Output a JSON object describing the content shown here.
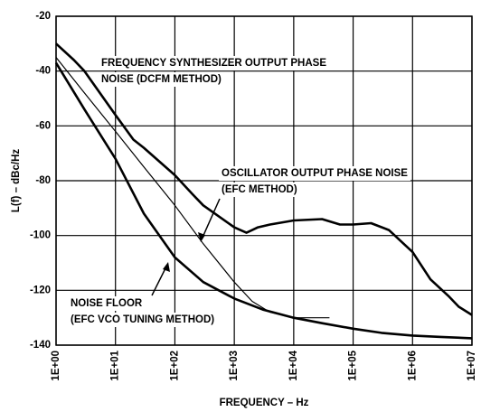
{
  "chart_data": {
    "type": "line",
    "xlabel": "FREQUENCY – Hz",
    "ylabel": "L(f) – dBc/Hz",
    "xscale": "log",
    "grid": true,
    "xlim": [
      1,
      10000000
    ],
    "ylim": [
      -140,
      -20
    ],
    "yticks": [
      -140,
      -120,
      -100,
      -80,
      -60,
      -40,
      -20
    ],
    "xticks": [
      {
        "value": 1,
        "label": "1E+00"
      },
      {
        "value": 10,
        "label": "1E+01"
      },
      {
        "value": 100,
        "label": "1E+02"
      },
      {
        "value": 1000,
        "label": "1E+03"
      },
      {
        "value": 10000,
        "label": "1E+04"
      },
      {
        "value": 100000,
        "label": "1E+05"
      },
      {
        "value": 1000000,
        "label": "1E+06"
      },
      {
        "value": 10000000,
        "label": "1E+07"
      }
    ],
    "series": [
      {
        "name": "FREQUENCY SYNTHESIZER OUTPUT PHASE NOISE (DCFM METHOD)",
        "color": "#000000",
        "width": 2.6,
        "x": [
          1,
          2,
          3,
          10,
          20,
          30,
          100,
          200,
          300,
          1000,
          1600,
          2500,
          4000,
          10000,
          30000,
          60000,
          100000,
          200000,
          400000,
          1000000,
          2000000,
          4000000,
          6000000,
          10000000
        ],
        "values": [
          -30,
          -36,
          -40,
          -56,
          -65,
          -68,
          -78,
          -85,
          -89,
          -97,
          -99,
          -97,
          -96,
          -94.5,
          -94,
          -96,
          -96,
          -95.5,
          -98,
          -106,
          -116,
          -122,
          -126,
          -129
        ]
      },
      {
        "name": "OSCILLATOR OUTPUT PHASE NOISE (EFC METHOD)",
        "color": "#000000",
        "width": 1.2,
        "x": [
          1,
          3,
          10,
          30,
          100,
          300,
          1000,
          2000,
          4000,
          10000,
          20000,
          40000
        ],
        "values": [
          -35,
          -48,
          -62,
          -75,
          -89,
          -103,
          -117,
          -124,
          -128,
          -130,
          -130,
          -130
        ]
      },
      {
        "name": "NOISE FLOOR (EFC VCO TUNING METHOD)",
        "color": "#000000",
        "width": 2.6,
        "x": [
          1,
          3,
          10,
          30,
          100,
          300,
          1000,
          3000,
          10000,
          30000,
          100000,
          300000,
          1000000,
          3000000,
          10000000
        ],
        "values": [
          -37,
          -54,
          -72,
          -92,
          -108,
          -117,
          -123,
          -127,
          -130,
          -132,
          -134,
          -135.5,
          -136.5,
          -137,
          -137.5
        ]
      }
    ],
    "annotations": [
      {
        "lines": [
          "FREQUENCY SYNTHESIZER OUTPUT PHASE",
          "NOISE (DCFM METHOD)"
        ]
      },
      {
        "lines": [
          "OSCILLATOR OUTPUT PHASE NOISE",
          "(EFC METHOD)"
        ]
      },
      {
        "lines": [
          "NOISE FLOOR",
          "(EFC VCO TUNING METHOD)"
        ]
      }
    ]
  }
}
